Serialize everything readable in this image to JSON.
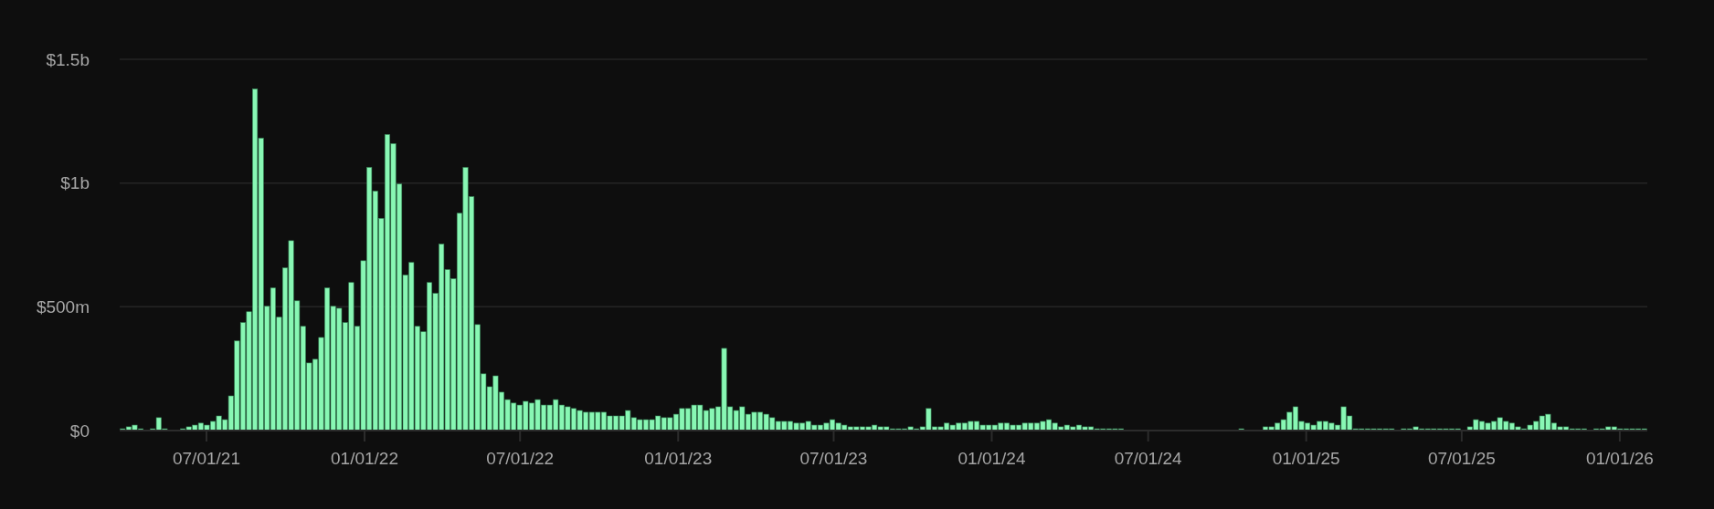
{
  "chart_data": {
    "type": "bar",
    "color": "#88f7b4",
    "grid": "y",
    "xlim": [
      "2021-03-22",
      "2026-02-02"
    ],
    "ylim": [
      0,
      1500000000
    ],
    "yticks": [
      {
        "value": 0,
        "label": "$0"
      },
      {
        "value": 500000000,
        "label": "$500m"
      },
      {
        "value": 1000000000,
        "label": "$1b"
      },
      {
        "value": 1500000000,
        "label": "$1.5b"
      }
    ],
    "xticks": [
      {
        "value": "2021-07-01",
        "label": "07/01/21"
      },
      {
        "value": "2022-01-01",
        "label": "01/01/22"
      },
      {
        "value": "2022-07-01",
        "label": "07/01/22"
      },
      {
        "value": "2023-01-01",
        "label": "01/01/23"
      },
      {
        "value": "2023-07-01",
        "label": "07/01/23"
      },
      {
        "value": "2024-01-01",
        "label": "01/01/24"
      },
      {
        "value": "2024-07-01",
        "label": "07/01/24"
      },
      {
        "value": "2025-01-01",
        "label": "01/01/25"
      },
      {
        "value": "2025-07-01",
        "label": "07/01/25"
      },
      {
        "value": "2026-01-01",
        "label": "01/01/26"
      }
    ],
    "x": [
      "2021-03-22",
      "2021-03-29",
      "2021-04-05",
      "2021-04-12",
      "2021-04-19",
      "2021-04-26",
      "2021-05-03",
      "2021-05-10",
      "2021-05-17",
      "2021-05-24",
      "2021-05-31",
      "2021-06-07",
      "2021-06-14",
      "2021-06-21",
      "2021-06-28",
      "2021-07-05",
      "2021-07-12",
      "2021-07-19",
      "2021-07-26",
      "2021-08-02",
      "2021-08-09",
      "2021-08-16",
      "2021-08-23",
      "2021-08-30",
      "2021-09-06",
      "2021-09-13",
      "2021-09-20",
      "2021-09-27",
      "2021-10-04",
      "2021-10-11",
      "2021-10-18",
      "2021-10-25",
      "2021-11-01",
      "2021-11-08",
      "2021-11-15",
      "2021-11-22",
      "2021-11-29",
      "2021-12-06",
      "2021-12-13",
      "2021-12-20",
      "2021-12-27",
      "2022-01-03",
      "2022-01-10",
      "2022-01-17",
      "2022-01-24",
      "2022-01-31",
      "2022-02-07",
      "2022-02-14",
      "2022-02-21",
      "2022-02-28",
      "2022-03-07",
      "2022-03-14",
      "2022-03-21",
      "2022-03-28",
      "2022-04-04",
      "2022-04-11",
      "2022-04-18",
      "2022-04-25",
      "2022-05-02",
      "2022-05-09",
      "2022-05-16",
      "2022-05-23",
      "2022-05-30",
      "2022-06-06",
      "2022-06-13",
      "2022-06-20",
      "2022-06-27",
      "2022-07-04",
      "2022-07-11",
      "2022-07-18",
      "2022-07-25",
      "2022-08-01",
      "2022-08-08",
      "2022-08-15",
      "2022-08-22",
      "2022-08-29",
      "2022-09-05",
      "2022-09-12",
      "2022-09-19",
      "2022-09-26",
      "2022-10-03",
      "2022-10-10",
      "2022-10-17",
      "2022-10-24",
      "2022-10-31",
      "2022-11-07",
      "2022-11-14",
      "2022-11-21",
      "2022-11-28",
      "2022-12-05",
      "2022-12-12",
      "2022-12-19",
      "2022-12-26",
      "2023-01-02",
      "2023-01-09",
      "2023-01-16",
      "2023-01-23",
      "2023-01-30",
      "2023-02-06",
      "2023-02-13",
      "2023-02-20",
      "2023-02-27",
      "2023-03-06",
      "2023-03-13",
      "2023-03-20",
      "2023-03-27",
      "2023-04-03",
      "2023-04-10",
      "2023-04-17",
      "2023-04-24",
      "2023-05-01",
      "2023-05-08",
      "2023-05-15",
      "2023-05-22",
      "2023-05-29",
      "2023-06-05",
      "2023-06-12",
      "2023-06-19",
      "2023-06-26",
      "2023-07-03",
      "2023-07-10",
      "2023-07-17",
      "2023-07-24",
      "2023-07-31",
      "2023-08-07",
      "2023-08-14",
      "2023-08-21",
      "2023-08-28",
      "2023-09-04",
      "2023-09-11",
      "2023-09-18",
      "2023-09-25",
      "2023-10-02",
      "2023-10-09",
      "2023-10-16",
      "2023-10-23",
      "2023-10-30",
      "2023-11-06",
      "2023-11-13",
      "2023-11-20",
      "2023-11-27",
      "2023-12-04",
      "2023-12-11",
      "2023-12-18",
      "2023-12-25",
      "2024-01-01",
      "2024-01-08",
      "2024-01-15",
      "2024-01-22",
      "2024-01-29",
      "2024-02-05",
      "2024-02-12",
      "2024-02-19",
      "2024-02-26",
      "2024-03-04",
      "2024-03-11",
      "2024-03-18",
      "2024-03-25",
      "2024-04-01",
      "2024-04-08",
      "2024-04-15",
      "2024-04-22",
      "2024-04-29",
      "2024-05-06",
      "2024-05-13",
      "2024-05-20",
      "2024-05-27",
      "2024-06-03",
      "2024-06-10",
      "2024-06-17",
      "2024-06-24",
      "2024-07-01",
      "2024-07-08",
      "2024-07-15",
      "2024-07-22",
      "2024-07-29",
      "2024-08-05",
      "2024-08-12",
      "2024-08-19",
      "2024-08-26",
      "2024-09-02",
      "2024-09-09",
      "2024-09-16",
      "2024-09-23",
      "2024-09-30",
      "2024-10-07",
      "2024-10-14",
      "2024-10-21",
      "2024-10-28",
      "2024-11-04",
      "2024-11-11",
      "2024-11-18",
      "2024-11-25",
      "2024-12-02",
      "2024-12-09",
      "2024-12-16",
      "2024-12-23",
      "2024-12-30",
      "2025-01-06",
      "2025-01-13",
      "2025-01-20",
      "2025-01-27",
      "2025-02-03",
      "2025-02-10",
      "2025-02-17",
      "2025-02-24",
      "2025-03-03",
      "2025-03-10",
      "2025-03-17",
      "2025-03-24",
      "2025-03-31",
      "2025-04-07",
      "2025-04-14",
      "2025-04-21",
      "2025-04-28",
      "2025-05-05",
      "2025-05-12",
      "2025-05-19",
      "2025-05-26",
      "2025-06-02",
      "2025-06-09",
      "2025-06-16",
      "2025-06-23",
      "2025-06-30",
      "2025-07-07",
      "2025-07-14",
      "2025-07-21",
      "2025-07-28",
      "2025-08-04",
      "2025-08-11",
      "2025-08-18",
      "2025-08-25",
      "2025-09-01",
      "2025-09-08",
      "2025-09-15",
      "2025-09-22",
      "2025-09-29",
      "2025-10-06",
      "2025-10-13",
      "2025-10-20",
      "2025-10-27",
      "2025-11-03",
      "2025-11-10",
      "2025-11-17",
      "2025-11-24",
      "2025-12-01",
      "2025-12-08",
      "2025-12-15",
      "2025-12-22",
      "2025-12-29",
      "2026-01-05",
      "2026-01-12",
      "2026-01-19",
      "2026-01-26"
    ],
    "values": [
      7000000,
      15000000,
      22000000,
      7000000,
      0,
      7000000,
      52000000,
      7000000,
      0,
      0,
      7000000,
      15000000,
      22000000,
      30000000,
      22000000,
      37000000,
      59000000,
      44000000,
      140000000,
      362000000,
      436000000,
      480000000,
      1380000000,
      1181000000,
      502000000,
      576000000,
      458000000,
      657000000,
      767000000,
      524000000,
      421000000,
      273000000,
      288000000,
      376000000,
      576000000,
      502000000,
      494000000,
      436000000,
      598000000,
      421000000,
      686000000,
      1063000000,
      967000000,
      857000000,
      1196000000,
      1159000000,
      996000000,
      628000000,
      679000000,
      421000000,
      399000000,
      598000000,
      554000000,
      753000000,
      650000000,
      613000000,
      878000000,
      1063000000,
      945000000,
      428000000,
      229000000,
      177000000,
      221000000,
      155000000,
      125000000,
      111000000,
      103000000,
      118000000,
      111000000,
      125000000,
      103000000,
      103000000,
      125000000,
      103000000,
      96000000,
      89000000,
      81000000,
      74000000,
      74000000,
      74000000,
      74000000,
      59000000,
      59000000,
      59000000,
      81000000,
      52000000,
      44000000,
      44000000,
      44000000,
      59000000,
      52000000,
      52000000,
      66000000,
      89000000,
      89000000,
      103000000,
      103000000,
      81000000,
      89000000,
      96000000,
      332000000,
      96000000,
      81000000,
      96000000,
      66000000,
      74000000,
      74000000,
      66000000,
      52000000,
      37000000,
      37000000,
      37000000,
      30000000,
      30000000,
      37000000,
      22000000,
      22000000,
      30000000,
      44000000,
      30000000,
      22000000,
      15000000,
      15000000,
      15000000,
      15000000,
      22000000,
      15000000,
      15000000,
      7000000,
      7000000,
      7000000,
      15000000,
      7000000,
      15000000,
      89000000,
      15000000,
      15000000,
      30000000,
      22000000,
      30000000,
      30000000,
      37000000,
      37000000,
      22000000,
      22000000,
      22000000,
      30000000,
      30000000,
      22000000,
      22000000,
      30000000,
      30000000,
      30000000,
      37000000,
      44000000,
      30000000,
      15000000,
      22000000,
      15000000,
      22000000,
      15000000,
      15000000,
      7000000,
      7000000,
      7000000,
      7000000,
      7000000,
      0,
      0,
      0,
      0,
      0,
      0,
      0,
      0,
      0,
      0,
      0,
      0,
      0,
      0,
      0,
      0,
      0,
      0,
      0,
      7000000,
      0,
      0,
      0,
      15000000,
      15000000,
      30000000,
      44000000,
      74000000,
      96000000,
      37000000,
      30000000,
      22000000,
      37000000,
      37000000,
      30000000,
      22000000,
      96000000,
      59000000,
      7000000,
      7000000,
      7000000,
      7000000,
      7000000,
      7000000,
      7000000,
      0,
      7000000,
      7000000,
      15000000,
      7000000,
      7000000,
      7000000,
      7000000,
      7000000,
      7000000,
      7000000,
      0,
      15000000,
      44000000,
      37000000,
      30000000,
      37000000,
      52000000,
      37000000,
      30000000,
      15000000,
      7000000,
      22000000,
      37000000,
      59000000,
      66000000,
      30000000,
      15000000,
      15000000,
      7000000,
      7000000,
      7000000,
      0,
      7000000,
      7000000,
      15000000,
      15000000,
      7000000,
      7000000,
      7000000,
      7000000,
      7000000
    ]
  }
}
